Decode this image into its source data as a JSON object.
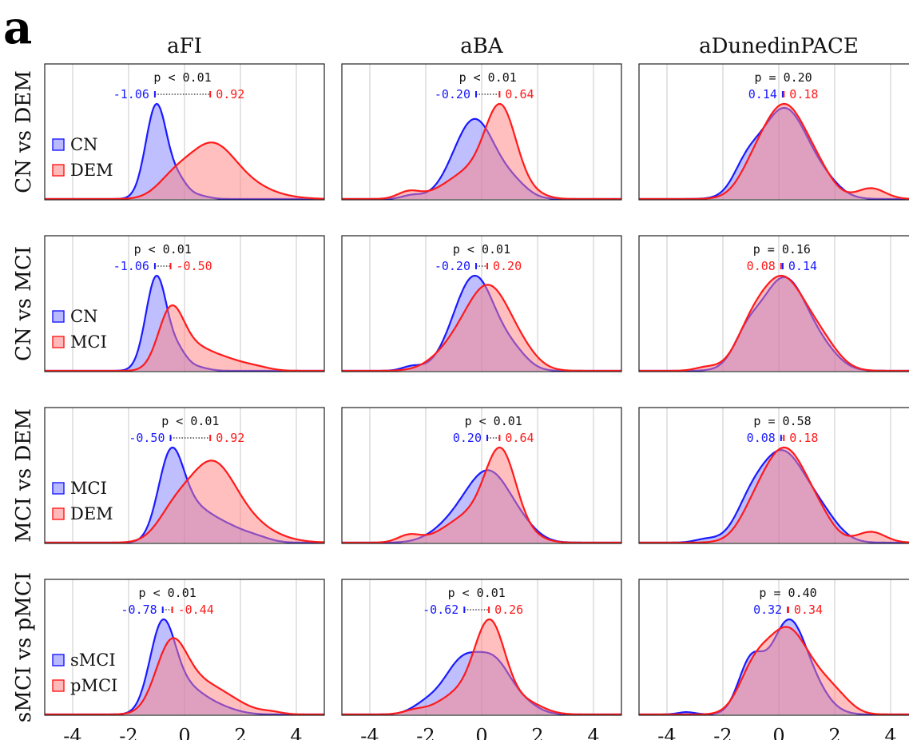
{
  "panel_label": "a",
  "colors": {
    "group_a": "#1a1aff",
    "group_b": "#ff1a1a",
    "fill_a": "#8080ff",
    "fill_b": "#ff8080"
  },
  "columns": [
    "aFI",
    "aBA",
    "aDunedinPACE"
  ],
  "rows": [
    "CN vs DEM",
    "CN vs MCI",
    "MCI vs DEM",
    "sMCI vs pMCI"
  ],
  "x_ticks": [
    "-4",
    "-2",
    "0",
    "2",
    "4"
  ],
  "chart_data": {
    "type": "area",
    "xlim": [
      -5,
      5
    ],
    "grid_x": [
      -4,
      -2,
      0,
      2,
      4
    ],
    "panels": [
      {
        "row": "CN vs DEM",
        "col": "aFI",
        "p": "p < 0.01",
        "legend": [
          "CN",
          "DEM"
        ],
        "median_a": "-1.06",
        "median_b": "0.92",
        "ma": -1.06,
        "mb": 0.92,
        "curves": [
          {
            "name": "CN",
            "comps": [
              [
                1,
                -1.0,
                0.38
              ],
              [
                0.16,
                -0.2,
                0.3
              ],
              [
                0.04,
                0.4,
                0.4
              ]
            ]
          },
          {
            "name": "DEM",
            "comps": [
              [
                0.45,
                0.9,
                0.8
              ],
              [
                0.18,
                -0.4,
                0.6
              ],
              [
                0.18,
                1.8,
                1.1
              ]
            ]
          }
        ]
      },
      {
        "row": "CN vs DEM",
        "col": "aBA",
        "p": "p < 0.01",
        "median_a": "-0.20",
        "median_b": "0.64",
        "ma": -0.2,
        "mb": 0.64,
        "curves": [
          {
            "name": "CN",
            "comps": [
              [
                0.9,
                -0.25,
                0.75
              ],
              [
                0.12,
                1.2,
                0.5
              ],
              [
                0.04,
                -2.5,
                0.35
              ]
            ]
          },
          {
            "name": "DEM",
            "comps": [
              [
                0.92,
                0.7,
                0.55
              ],
              [
                0.3,
                -0.4,
                0.9
              ],
              [
                0.08,
                -2.6,
                0.4
              ],
              [
                0.05,
                1.8,
                0.5
              ]
            ]
          }
        ]
      },
      {
        "row": "CN vs DEM",
        "col": "aDunedinPACE",
        "p": "p = 0.20",
        "median_a": "0.14",
        "median_b": "0.18",
        "ma": 0.14,
        "mb": 0.18,
        "curves": [
          {
            "name": "CN",
            "comps": [
              [
                0.85,
                0.2,
                0.9
              ],
              [
                0.18,
                -1.2,
                0.45
              ],
              [
                0.06,
                1.8,
                0.5
              ]
            ]
          },
          {
            "name": "DEM",
            "comps": [
              [
                0.88,
                0.2,
                0.85
              ],
              [
                0.1,
                -1.0,
                0.5
              ],
              [
                0.1,
                1.5,
                0.5
              ],
              [
                0.1,
                3.3,
                0.5
              ]
            ]
          }
        ]
      },
      {
        "row": "CN vs MCI",
        "col": "aFI",
        "p": "p < 0.01",
        "legend": [
          "CN",
          "MCI"
        ],
        "median_a": "-1.06",
        "median_b": "-0.50",
        "ma": -1.06,
        "mb": -0.5,
        "curves": [
          {
            "name": "CN",
            "comps": [
              [
                1,
                -1.0,
                0.38
              ],
              [
                0.16,
                -0.2,
                0.3
              ],
              [
                0.04,
                0.4,
                0.4
              ]
            ]
          },
          {
            "name": "MCI",
            "comps": [
              [
                0.6,
                -0.5,
                0.45
              ],
              [
                0.2,
                0.3,
                0.6
              ],
              [
                0.12,
                1.4,
                0.7
              ],
              [
                0.03,
                2.6,
                0.5
              ]
            ]
          }
        ]
      },
      {
        "row": "CN vs MCI",
        "col": "aBA",
        "p": "p < 0.01",
        "median_a": "-0.20",
        "median_b": "0.20",
        "ma": -0.2,
        "mb": 0.2,
        "curves": [
          {
            "name": "CN",
            "comps": [
              [
                0.9,
                -0.25,
                0.75
              ],
              [
                0.12,
                1.2,
                0.5
              ],
              [
                0.04,
                -2.5,
                0.35
              ]
            ]
          },
          {
            "name": "MCI",
            "comps": [
              [
                0.8,
                0.25,
                0.85
              ],
              [
                0.12,
                -1.2,
                0.7
              ],
              [
                0.05,
                1.6,
                0.5
              ]
            ]
          }
        ]
      },
      {
        "row": "CN vs MCI",
        "col": "aDunedinPACE",
        "p": "p = 0.16",
        "median_a": "0.14",
        "median_b": "0.08",
        "ma": 0.14,
        "mb": 0.08,
        "curves": [
          {
            "name": "CN",
            "comps": [
              [
                0.85,
                0.2,
                0.9
              ],
              [
                0.18,
                -1.2,
                0.45
              ],
              [
                0.06,
                1.8,
                0.5
              ]
            ]
          },
          {
            "name": "MCI",
            "comps": [
              [
                0.85,
                0.1,
                0.9
              ],
              [
                0.15,
                -1.1,
                0.5
              ],
              [
                0.15,
                1.6,
                0.6
              ],
              [
                0.03,
                -2.6,
                0.4
              ]
            ]
          }
        ]
      },
      {
        "row": "MCI vs DEM",
        "col": "aFI",
        "p": "p < 0.01",
        "legend": [
          "MCI",
          "DEM"
        ],
        "median_a": "-0.50",
        "median_b": "0.92",
        "ma": -0.5,
        "mb": 0.92,
        "curves": [
          {
            "name": "MCI",
            "comps": [
              [
                0.6,
                -0.5,
                0.45
              ],
              [
                0.2,
                0.3,
                0.6
              ],
              [
                0.12,
                1.4,
                0.7
              ],
              [
                0.03,
                2.6,
                0.5
              ]
            ]
          },
          {
            "name": "DEM",
            "comps": [
              [
                0.45,
                0.9,
                0.8
              ],
              [
                0.18,
                -0.4,
                0.6
              ],
              [
                0.18,
                1.8,
                1.1
              ]
            ]
          }
        ]
      },
      {
        "row": "MCI vs DEM",
        "col": "aBA",
        "p": "p < 0.01",
        "median_a": "0.20",
        "median_b": "0.64",
        "ma": 0.2,
        "mb": 0.64,
        "curves": [
          {
            "name": "MCI",
            "comps": [
              [
                0.8,
                0.25,
                0.85
              ],
              [
                0.12,
                -1.2,
                0.7
              ],
              [
                0.05,
                1.6,
                0.5
              ]
            ]
          },
          {
            "name": "DEM",
            "comps": [
              [
                0.92,
                0.7,
                0.55
              ],
              [
                0.3,
                -0.4,
                0.9
              ],
              [
                0.08,
                -2.6,
                0.4
              ],
              [
                0.05,
                1.8,
                0.5
              ]
            ]
          }
        ]
      },
      {
        "row": "MCI vs DEM",
        "col": "aDunedinPACE",
        "p": "p = 0.58",
        "median_a": "0.08",
        "median_b": "0.18",
        "ma": 0.08,
        "mb": 0.18,
        "curves": [
          {
            "name": "MCI",
            "comps": [
              [
                0.85,
                0.1,
                0.9
              ],
              [
                0.15,
                -1.1,
                0.5
              ],
              [
                0.15,
                1.6,
                0.6
              ],
              [
                0.03,
                -2.6,
                0.4
              ]
            ]
          },
          {
            "name": "DEM",
            "comps": [
              [
                0.88,
                0.2,
                0.85
              ],
              [
                0.1,
                -1.0,
                0.5
              ],
              [
                0.1,
                1.5,
                0.5
              ],
              [
                0.1,
                3.3,
                0.5
              ]
            ]
          }
        ]
      },
      {
        "row": "sMCI vs pMCI",
        "col": "aFI",
        "p": "p < 0.01",
        "legend": [
          "sMCI",
          "pMCI"
        ],
        "median_a": "-0.78",
        "median_b": "-0.44",
        "ma": -0.78,
        "mb": -0.44,
        "curves": [
          {
            "name": "sMCI",
            "comps": [
              [
                0.75,
                -0.8,
                0.45
              ],
              [
                0.2,
                0.0,
                0.6
              ],
              [
                0.08,
                1.0,
                0.7
              ]
            ]
          },
          {
            "name": "pMCI",
            "comps": [
              [
                0.55,
                -0.5,
                0.55
              ],
              [
                0.25,
                0.5,
                0.8
              ],
              [
                0.08,
                1.7,
                0.7
              ],
              [
                0.02,
                3.1,
                0.4
              ]
            ]
          }
        ]
      },
      {
        "row": "sMCI vs pMCI",
        "col": "aBA",
        "p": "p < 0.01",
        "median_a": "-0.62",
        "median_b": "0.26",
        "ma": -0.62,
        "mb": 0.26,
        "curves": [
          {
            "name": "sMCI",
            "comps": [
              [
                0.55,
                -0.7,
                0.65
              ],
              [
                0.5,
                0.5,
                0.6
              ],
              [
                0.1,
                -2.0,
                0.5
              ],
              [
                0.08,
                1.6,
                0.5
              ]
            ]
          },
          {
            "name": "pMCI",
            "comps": [
              [
                0.95,
                0.3,
                0.55
              ],
              [
                0.2,
                -0.9,
                0.7
              ],
              [
                0.12,
                1.6,
                0.6
              ],
              [
                0.04,
                -2.4,
                0.4
              ]
            ]
          }
        ]
      },
      {
        "row": "sMCI vs pMCI",
        "col": "aDunedinPACE",
        "p": "p = 0.40",
        "median_a": "0.32",
        "median_b": "0.34",
        "ma": 0.32,
        "mb": 0.34,
        "curves": [
          {
            "name": "sMCI",
            "comps": [
              [
                0.75,
                0.3,
                0.6
              ],
              [
                0.45,
                -1.0,
                0.45
              ],
              [
                0.2,
                1.2,
                0.6
              ],
              [
                0.02,
                -3.3,
                0.3
              ]
            ]
          },
          {
            "name": "pMCI",
            "comps": [
              [
                0.7,
                0.3,
                0.7
              ],
              [
                0.35,
                -0.9,
                0.55
              ],
              [
                0.2,
                1.5,
                0.6
              ],
              [
                0.08,
                2.2,
                0.5
              ]
            ]
          }
        ]
      }
    ]
  }
}
